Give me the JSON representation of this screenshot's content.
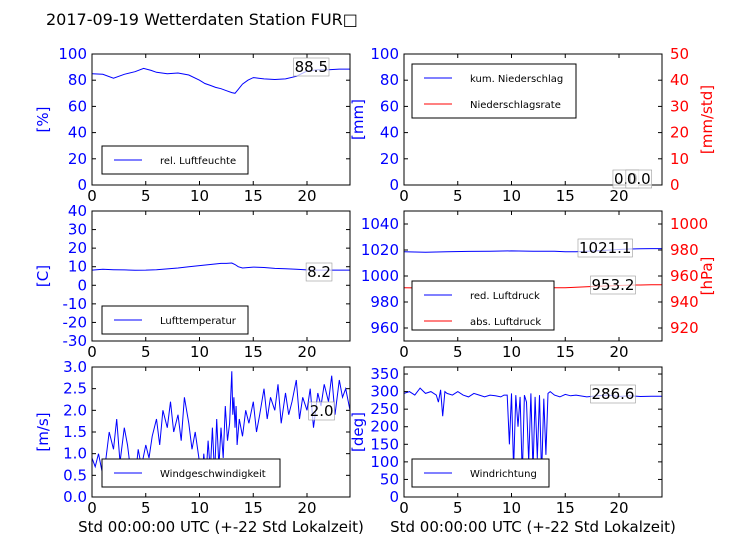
{
  "title": "2017-09-19 Wetterdaten Station FUR□",
  "colors": {
    "blue": "#0000ff",
    "red": "#ff0000",
    "black": "#000000"
  },
  "chart_data": [
    {
      "id": "humidity",
      "type": "line",
      "xlabel": "",
      "ylabel": "[%]",
      "ylim": [
        0,
        100
      ],
      "xlim": [
        0,
        24
      ],
      "yticks": [
        0,
        20,
        40,
        60,
        80,
        100
      ],
      "xticks": [
        0,
        5,
        10,
        15,
        20
      ],
      "value_label": "88.5",
      "legend_position": "lower-left",
      "grid": false,
      "series": [
        {
          "name": "rel. Luftfeuchte",
          "color": "#0000ff",
          "axis": "left",
          "x": [
            0,
            1,
            2,
            3,
            4,
            4.8,
            5.5,
            6,
            7,
            8,
            9,
            10,
            10.5,
            11,
            11.5,
            12,
            12.5,
            13,
            13.3,
            13.6,
            14,
            14.5,
            15,
            15.5,
            16,
            17,
            18,
            19,
            19.5,
            20,
            21,
            22,
            23,
            24
          ],
          "y": [
            85,
            84.5,
            81.5,
            84.5,
            86.5,
            89,
            87.5,
            86,
            85,
            85.5,
            84,
            80,
            77.5,
            76,
            74.5,
            73.5,
            72,
            70.5,
            70,
            73,
            77,
            80,
            82,
            81.5,
            81,
            80.5,
            81,
            83,
            85,
            87,
            88,
            88,
            88.5,
            88.5
          ]
        }
      ]
    },
    {
      "id": "precipitation",
      "type": "line",
      "xlabel": "",
      "ylabel": "[mm]",
      "ylabel_right": "[mm/std]",
      "ylim": [
        0,
        100
      ],
      "ylim_right": [
        0,
        50
      ],
      "xlim": [
        0,
        24
      ],
      "yticks": [
        0,
        20,
        40,
        60,
        80,
        100
      ],
      "yticks_right": [
        0,
        10,
        20,
        30,
        40,
        50
      ],
      "xticks": [
        0,
        5,
        10,
        15,
        20
      ],
      "value_label": "0.0",
      "value_label_2": "0.0",
      "legend_position": "upper-left",
      "grid": false,
      "series": [
        {
          "name": "kum. Niederschlag",
          "color": "#0000ff",
          "axis": "left",
          "x": [
            0,
            24
          ],
          "y": [
            0,
            0
          ]
        },
        {
          "name": "Niederschlagsrate",
          "color": "#ff0000",
          "axis": "right",
          "x": [
            0,
            24
          ],
          "y": [
            0,
            0
          ]
        }
      ]
    },
    {
      "id": "temperature",
      "type": "line",
      "xlabel": "",
      "ylabel": "[C]",
      "ylim": [
        -30,
        40
      ],
      "xlim": [
        0,
        24
      ],
      "yticks": [
        -30,
        -20,
        -10,
        0,
        10,
        20,
        30,
        40
      ],
      "xticks": [
        0,
        5,
        10,
        15,
        20
      ],
      "value_label": "8.2",
      "legend_position": "lower-left",
      "grid": false,
      "series": [
        {
          "name": "Lufttemperatur",
          "color": "#0000ff",
          "axis": "left",
          "x": [
            0,
            1,
            2,
            3,
            4,
            5,
            6,
            7,
            8,
            9,
            10,
            11,
            12,
            12.5,
            13,
            13.3,
            13.6,
            14,
            15,
            16,
            17,
            18,
            19,
            20,
            21,
            22,
            23,
            24
          ],
          "y": [
            8.2,
            8.6,
            8.4,
            8.3,
            8.1,
            8.2,
            8.4,
            8.8,
            9.3,
            10,
            10.6,
            11.2,
            11.8,
            11.8,
            12,
            11.2,
            10,
            9.3,
            9.8,
            9.6,
            9.1,
            8.9,
            8.6,
            8.3,
            8.2,
            8.2,
            8.2,
            8.2
          ]
        }
      ]
    },
    {
      "id": "pressure",
      "type": "line",
      "xlabel": "",
      "ylabel": "",
      "ylabel_right": "[hPa]",
      "ylim": [
        950,
        1050
      ],
      "ylim_right": [
        910,
        1010
      ],
      "xlim": [
        0,
        24
      ],
      "yticks": [
        960,
        980,
        1000,
        1020,
        1040
      ],
      "yticks_right": [
        920,
        940,
        960,
        980,
        1000
      ],
      "xticks": [
        0,
        5,
        10,
        15,
        20
      ],
      "value_label": "1021.1",
      "value_label_2": "953.2",
      "legend_position": "lower-left",
      "grid": false,
      "series": [
        {
          "name": "red. Luftdruck",
          "color": "#0000ff",
          "axis": "left",
          "x": [
            0,
            2,
            4,
            6,
            8,
            10,
            12,
            14,
            15,
            16,
            17,
            18,
            19,
            20,
            21,
            22,
            23,
            24
          ],
          "y": [
            1018.6,
            1018.3,
            1018.6,
            1018.9,
            1019.1,
            1019.3,
            1019.0,
            1019.0,
            1018.6,
            1018.7,
            1019.0,
            1019.4,
            1019.9,
            1020.4,
            1020.8,
            1021.0,
            1021.1,
            1021.1
          ]
        },
        {
          "name": "abs. Luftdruck",
          "color": "#ff0000",
          "axis": "right",
          "x": [
            0,
            2,
            4,
            6,
            8,
            10,
            12,
            14,
            15,
            16,
            17,
            18,
            19,
            20,
            21,
            22,
            23,
            24
          ],
          "y": [
            950.9,
            950.8,
            950.7,
            950.9,
            951.0,
            951.1,
            951.1,
            950.9,
            951.0,
            951.3,
            951.7,
            952.1,
            952.4,
            952.7,
            953.0,
            953.1,
            953.2,
            953.2
          ]
        }
      ]
    },
    {
      "id": "wind_speed",
      "type": "line",
      "xlabel": "Std 00:00:00 UTC (+-22 Std Lokalzeit)",
      "ylabel": "[m/s]",
      "ylim": [
        0,
        3.0
      ],
      "xlim": [
        0,
        24
      ],
      "yticks": [
        0.0,
        0.5,
        1.0,
        1.5,
        2.0,
        2.5,
        3.0
      ],
      "xticks": [
        0,
        5,
        10,
        15,
        20
      ],
      "value_label": "2.0",
      "legend_position": "lower-left",
      "grid": false,
      "series": [
        {
          "name": "Windgeschwindigkeit",
          "color": "#0000ff",
          "axis": "left",
          "x": [
            0,
            0.3,
            0.6,
            1,
            1.3,
            1.6,
            2,
            2.3,
            2.6,
            3,
            3.3,
            3.6,
            4,
            4.3,
            4.6,
            5,
            5.3,
            5.6,
            6,
            6.3,
            6.6,
            7,
            7.3,
            7.6,
            8,
            8.3,
            8.6,
            9,
            9.3,
            9.6,
            10,
            10.2,
            10.4,
            10.6,
            10.8,
            11,
            11.2,
            11.4,
            11.6,
            11.8,
            12,
            12.2,
            12.4,
            12.6,
            12.8,
            13,
            13.1,
            13.2,
            13.3,
            13.4,
            13.5,
            13.7,
            14,
            14.3,
            14.6,
            15,
            15.3,
            15.6,
            16,
            16.3,
            16.6,
            17,
            17.3,
            17.6,
            18,
            18.3,
            18.6,
            19,
            19.3,
            19.6,
            20,
            20.3,
            20.6,
            21,
            21.3,
            21.6,
            22,
            22.3,
            22.6,
            23,
            23.3,
            23.6,
            24
          ],
          "y": [
            0.9,
            0.7,
            1.0,
            0.5,
            0.9,
            1.5,
            1.1,
            1.8,
            0.8,
            1.6,
            1.2,
            0.6,
            0.4,
            1.1,
            0.7,
            1.2,
            0.9,
            1.4,
            1.8,
            1.2,
            2.0,
            1.6,
            2.2,
            1.5,
            1.9,
            1.3,
            2.3,
            1.7,
            1.1,
            1.5,
            0.8,
            0.3,
            1.0,
            0.4,
            1.3,
            0.6,
            1.6,
            0.5,
            1.8,
            0.7,
            1.6,
            0.9,
            2.1,
            1.3,
            1.7,
            2.9,
            1.9,
            2.3,
            1.6,
            2.1,
            1.2,
            1.8,
            1.4,
            2.0,
            1.7,
            2.2,
            1.5,
            1.9,
            2.5,
            1.8,
            2.3,
            2.0,
            2.6,
            1.7,
            2.4,
            1.9,
            2.2,
            2.7,
            1.8,
            2.3,
            2.0,
            2.5,
            1.6,
            2.4,
            2.1,
            2.6,
            2.2,
            2.8,
            1.9,
            2.7,
            2.3,
            2.5,
            2.0
          ]
        }
      ]
    },
    {
      "id": "wind_direction",
      "type": "line",
      "xlabel": "Std 00:00:00 UTC (+-22 Std Lokalzeit)",
      "ylabel": "[deg]",
      "ylim": [
        0,
        370
      ],
      "xlim": [
        0,
        24
      ],
      "yticks": [
        0,
        50,
        100,
        150,
        200,
        250,
        300,
        350
      ],
      "xticks": [
        0,
        5,
        10,
        15,
        20
      ],
      "value_label": "286.6",
      "legend_position": "lower-left",
      "grid": false,
      "series": [
        {
          "name": "Windrichtung",
          "color": "#0000ff",
          "axis": "left",
          "x": [
            0,
            0.5,
            1,
            1.5,
            2,
            2.5,
            3,
            3.2,
            3.4,
            3.6,
            3.8,
            4,
            4.5,
            5,
            5.5,
            6,
            6.5,
            7,
            7.5,
            8,
            8.5,
            9,
            9.3,
            9.6,
            9.8,
            10,
            10.2,
            10.4,
            10.6,
            10.8,
            11,
            11.2,
            11.4,
            11.6,
            11.8,
            12,
            12.2,
            12.4,
            12.6,
            12.8,
            13,
            13.2,
            13.4,
            13.6,
            14,
            14.5,
            15,
            15.5,
            16,
            17,
            18,
            19,
            20,
            21,
            22,
            23,
            24
          ],
          "y": [
            295,
            300,
            290,
            310,
            295,
            300,
            290,
            270,
            305,
            230,
            300,
            295,
            290,
            300,
            290,
            285,
            295,
            290,
            285,
            290,
            288,
            285,
            290,
            290,
            150,
            295,
            80,
            290,
            200,
            285,
            60,
            290,
            270,
            100,
            295,
            75,
            285,
            110,
            290,
            60,
            280,
            120,
            295,
            300,
            290,
            285,
            292,
            288,
            290,
            285,
            288,
            290,
            286,
            288,
            286,
            287,
            286.6
          ]
        }
      ]
    }
  ]
}
